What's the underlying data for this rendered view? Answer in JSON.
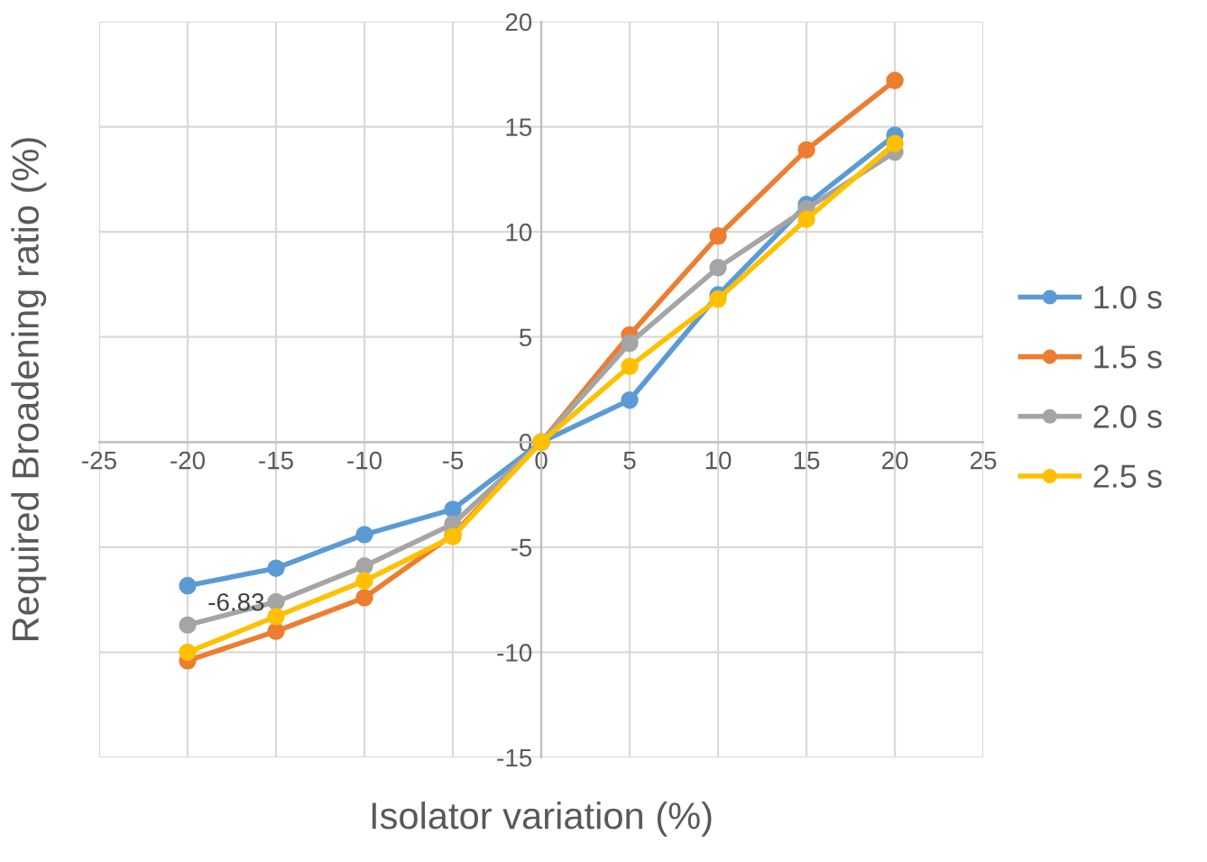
{
  "chart_data": {
    "type": "line",
    "xlabel": "Isolator variation (%)",
    "ylabel": "Required Broadening ratio (%)",
    "x": [
      -20,
      -15,
      -10,
      -5,
      0,
      5,
      10,
      15,
      20
    ],
    "series": [
      {
        "name": "1.0 s",
        "color": "#5b9bd5",
        "values": [
          -6.83,
          -6.0,
          -4.4,
          -3.2,
          0,
          2.0,
          7.0,
          11.3,
          14.6
        ]
      },
      {
        "name": "1.5 s",
        "color": "#ed7d31",
        "values": [
          -10.4,
          -9.0,
          -7.4,
          -4.4,
          0,
          5.1,
          9.8,
          13.9,
          17.2
        ]
      },
      {
        "name": "2.0 s",
        "color": "#a5a5a5",
        "values": [
          -8.7,
          -7.6,
          -5.9,
          -3.9,
          0,
          4.7,
          8.3,
          11.1,
          13.8
        ]
      },
      {
        "name": "2.5 s",
        "color": "#ffc000",
        "values": [
          -10.0,
          -8.3,
          -6.6,
          -4.5,
          0,
          3.6,
          6.8,
          10.6,
          14.2
        ]
      }
    ],
    "annotations": [
      {
        "text": "-6.83",
        "x": -20,
        "y": -6.83
      }
    ],
    "xlim": [
      -25,
      25
    ],
    "xticks": [
      -25,
      -20,
      -15,
      -10,
      -5,
      0,
      5,
      10,
      15,
      20,
      25
    ],
    "ylim": [
      -15,
      20
    ],
    "yticks": [
      -15,
      -10,
      -5,
      0,
      5,
      10,
      15,
      20
    ],
    "grid": true,
    "legend": "right",
    "marker": "circle",
    "line_style": "solid"
  }
}
